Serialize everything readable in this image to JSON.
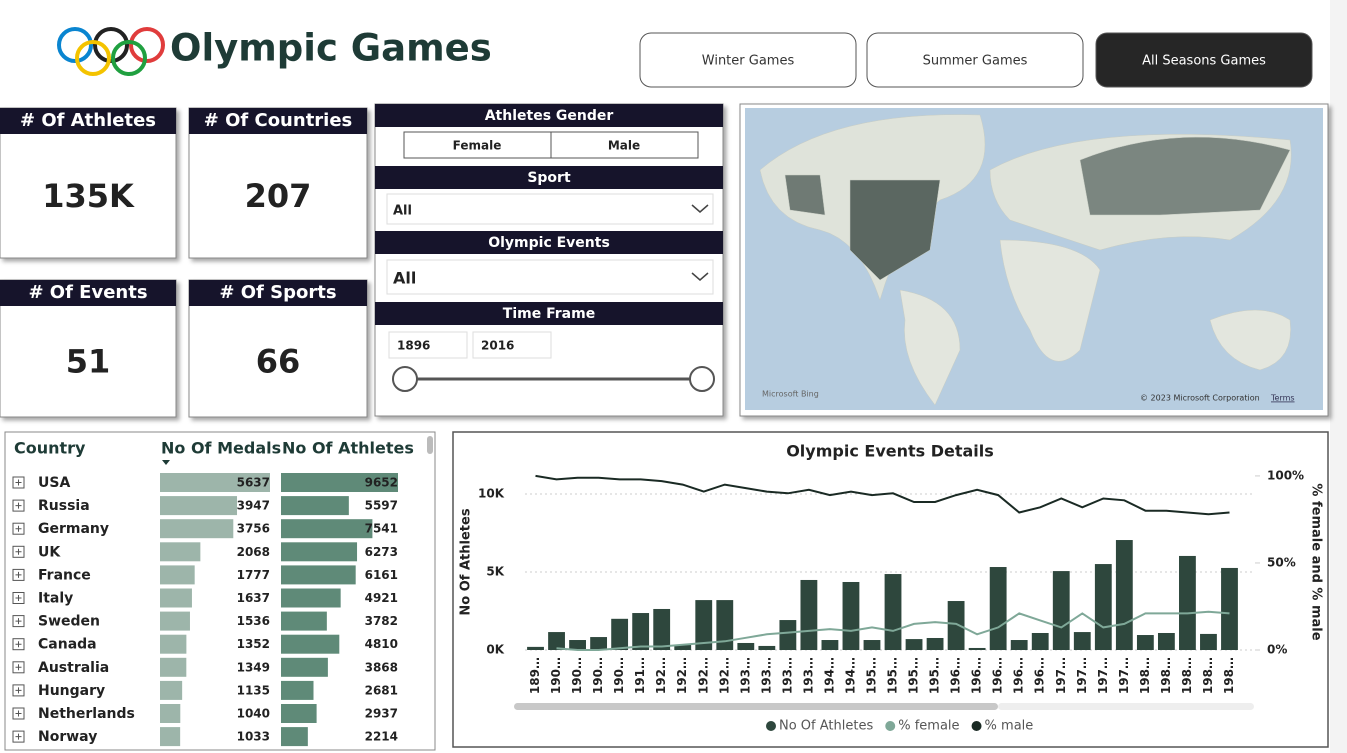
{
  "header": {
    "title": "Olympic Games",
    "buttons": [
      "Winter Games",
      "Summer Games",
      "All Seasons Games"
    ]
  },
  "kpis": [
    {
      "label": "# Of Athletes",
      "value": "135K"
    },
    {
      "label": "# Of Countries",
      "value": 207
    },
    {
      "label": "# Of Events",
      "value": 51
    },
    {
      "label": "# Of Sports",
      "value": 66
    }
  ],
  "filters": {
    "gender": {
      "title": "Athletes Gender",
      "options": [
        "Female",
        "Male"
      ]
    },
    "sport": {
      "title": "Sport",
      "value": "All"
    },
    "events": {
      "title": "Olympic Events",
      "value": "All"
    },
    "time": {
      "title": "Time Frame",
      "start": 1896,
      "end": 2016
    }
  },
  "map": {
    "brand": "Microsoft Bing",
    "copyright": "© 2023 Microsoft Corporation",
    "terms": "Terms"
  },
  "table": {
    "columns": [
      "Country",
      "No Of Medals",
      "No Of Athletes"
    ],
    "rows": [
      [
        "USA",
        5637,
        9652
      ],
      [
        "Russia",
        3947,
        5597
      ],
      [
        "Germany",
        3756,
        7541
      ],
      [
        "UK",
        2068,
        6273
      ],
      [
        "France",
        1777,
        6161
      ],
      [
        "Italy",
        1637,
        4921
      ],
      [
        "Sweden",
        1536,
        3782
      ],
      [
        "Canada",
        1352,
        4810
      ],
      [
        "Australia",
        1349,
        3868
      ],
      [
        "Hungary",
        1135,
        2681
      ],
      [
        "Netherlands",
        1040,
        2937
      ],
      [
        "Norway",
        1033,
        2214
      ]
    ]
  },
  "chart_data": {
    "type": "combo",
    "title": "Olympic Events Details",
    "y_label": "No Of Athletes",
    "y2_label": "% female and % male",
    "categories": [
      "189…",
      "190…",
      "190…",
      "190…",
      "190…",
      "191…",
      "192…",
      "192…",
      "192…",
      "192…",
      "193…",
      "193…",
      "193…",
      "193…",
      "194…",
      "194…",
      "195…",
      "195…",
      "195…",
      "195…",
      "196…",
      "196…",
      "196…",
      "196…",
      "196…",
      "197…",
      "197…",
      "197…",
      "197…",
      "198…",
      "198…",
      "198…",
      "198…",
      "198…"
    ],
    "series": [
      {
        "name": "No Of Athletes",
        "type": "bar",
        "color": "#2e473d",
        "values": [
          200,
          1150,
          640,
          830,
          2000,
          2370,
          2630,
          320,
          3200,
          3200,
          450,
          260,
          1920,
          4490,
          640,
          4360,
          640,
          4870,
          700,
          770,
          3140,
          130,
          5320,
          640,
          1090,
          5060,
          1150,
          5510,
          7050,
          960,
          1090,
          6030,
          1030,
          5260
        ]
      },
      {
        "name": "% female",
        "type": "line",
        "axis": "y2",
        "color": "#7fa898",
        "values": [
          null,
          1,
          0,
          0,
          1,
          2,
          2,
          3,
          4,
          5,
          7,
          9,
          10,
          11,
          12,
          11,
          13,
          11,
          15,
          16,
          15,
          9,
          13,
          21,
          17,
          13,
          21,
          13,
          15,
          21,
          21,
          21,
          22,
          21
        ]
      },
      {
        "name": "% male",
        "type": "line",
        "axis": "y2",
        "color": "#1a2a24",
        "values": [
          100,
          98,
          99,
          99,
          98,
          98,
          97,
          95,
          91,
          95,
          93,
          91,
          90,
          92,
          89,
          91,
          89,
          90,
          85,
          85,
          89,
          92,
          89,
          79,
          82,
          87,
          82,
          87,
          86,
          80,
          80,
          79,
          78,
          79
        ]
      }
    ],
    "ylim": [
      0,
      11540
    ],
    "yticks": [
      {
        "value": 0,
        "label": "0K"
      },
      {
        "value": 5000,
        "label": "5K"
      },
      {
        "value": 10000,
        "label": "10K"
      }
    ],
    "y2lim": [
      0,
      103.4
    ],
    "y2ticks": [
      {
        "value": 0,
        "label": "0%"
      },
      {
        "value": 50,
        "label": "50%"
      },
      {
        "value": 100,
        "label": "100%"
      }
    ],
    "grid": true
  }
}
